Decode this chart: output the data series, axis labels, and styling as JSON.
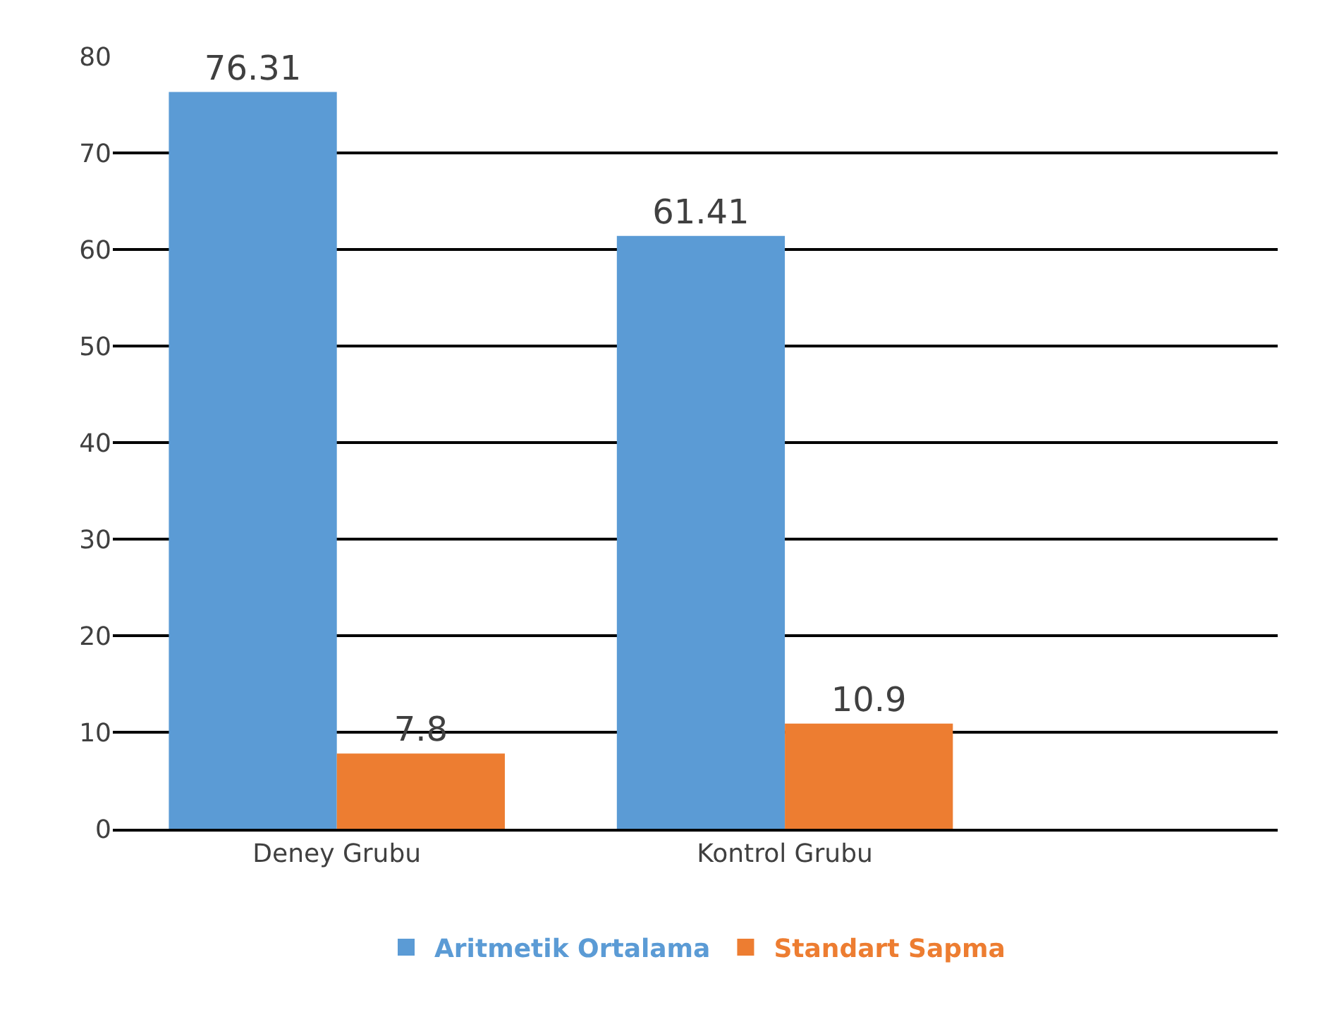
{
  "chart_data": {
    "type": "bar",
    "categories": [
      "Deney Grubu",
      "Kontrol Grubu"
    ],
    "series": [
      {
        "name": "Aritmetik Ortalama",
        "color": "#5b9bd5",
        "values": [
          76.31,
          61.41
        ]
      },
      {
        "name": "Standart Sapma",
        "color": "#ed7d31",
        "values": [
          7.8,
          10.9
        ]
      }
    ],
    "ylim": [
      0,
      80
    ],
    "yticks": [
      0,
      10,
      20,
      30,
      40,
      50,
      60,
      70,
      80
    ],
    "grid": "y",
    "legend": "bottom",
    "data_labels": true
  }
}
